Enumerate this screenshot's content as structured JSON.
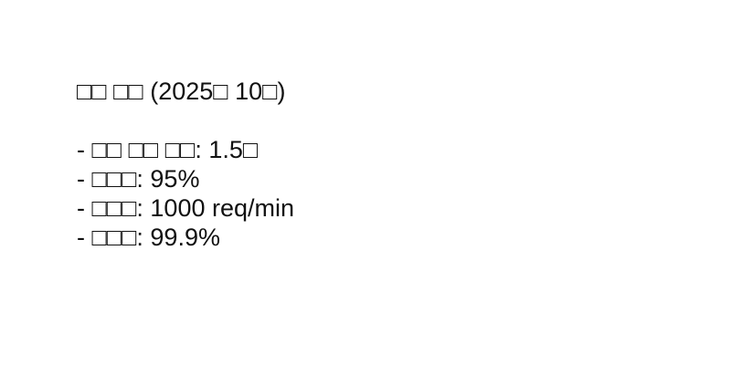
{
  "document": {
    "title": "□□ □□ (2025□ 10□)",
    "items": [
      "- □□ □□ □□: 1.5□",
      "- □□□: 95%",
      "- □□□: 1000 req/min",
      "- □□□: 99.9%"
    ]
  }
}
